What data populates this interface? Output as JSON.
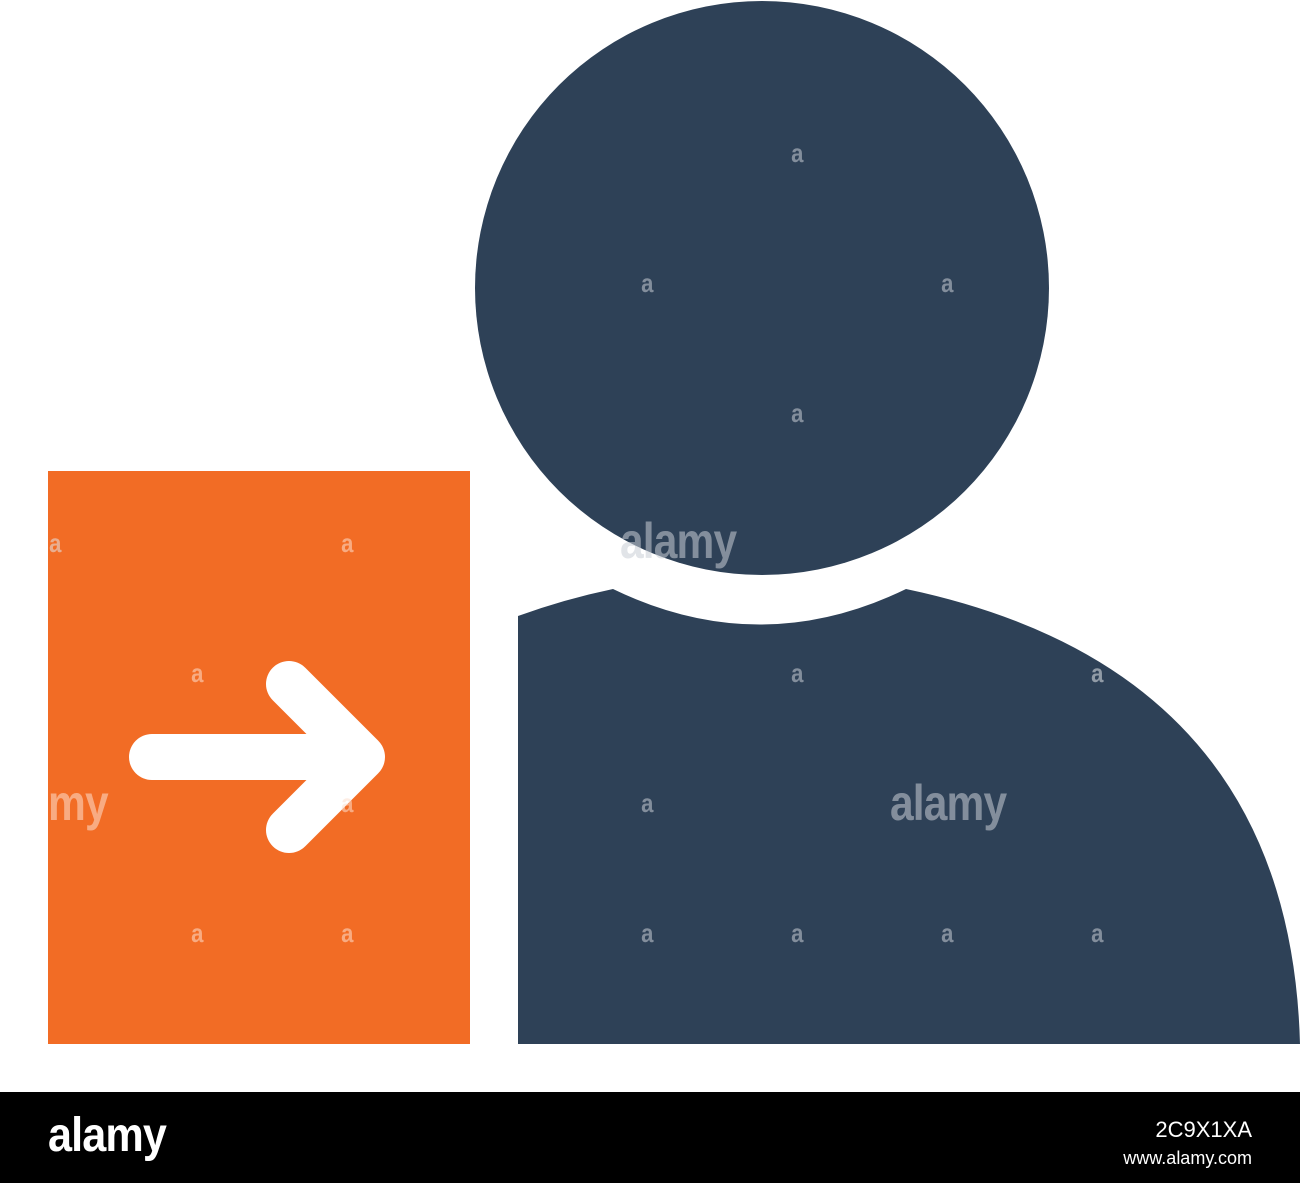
{
  "colors": {
    "accent": "#F26C25",
    "figure": "#2E4157",
    "arrow": "#FFFFFF",
    "background": "#FFFFFF",
    "bar": "#000000"
  },
  "icons": {
    "document": "document-icon",
    "arrow": "arrow-right-icon",
    "user": "user-icon"
  },
  "watermark": {
    "word": "alamy",
    "fragment_left": "my",
    "letter": "a"
  },
  "footer": {
    "brand": "alamy",
    "image_id": "2C9X1XA",
    "url": "www.alamy.com"
  }
}
